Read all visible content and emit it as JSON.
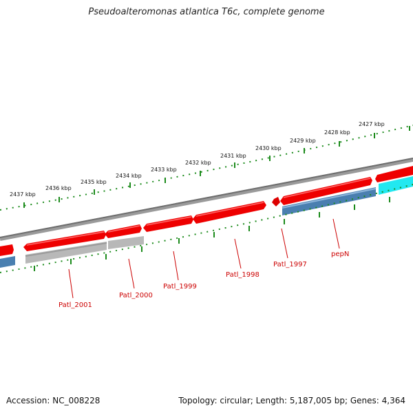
{
  "title": "Pseudoalteromonas atlantica T6c, complete genome",
  "footer": {
    "accession": "Accession: NC_008228",
    "summary": "Topology: circular; Length: 5,187,005 bp; Genes: 4,364"
  },
  "colors": {
    "backbone": "#7f7f7f",
    "forward_gene": "#ee0000",
    "reverse_gene": "#ee0000",
    "blue_feature": "#4a7fb0",
    "gray_feature": "#b8b8b8",
    "cyan_feature": "#22e8f0",
    "ticks": "#1a8a1a",
    "labels": "#cc0000"
  },
  "scale_labels": [
    "2427 kbp",
    "2428 kbp",
    "2429 kbp",
    "2430 kbp",
    "2431 kbp",
    "2432 kbp",
    "2433 kbp",
    "2434 kbp",
    "2435 kbp",
    "2436 kbp",
    "2437 kbp"
  ],
  "gene_labels": [
    "pepN",
    "Patl_1997",
    "Patl_1998",
    "Patl_1999",
    "Patl_2000",
    "Patl_2001"
  ]
}
